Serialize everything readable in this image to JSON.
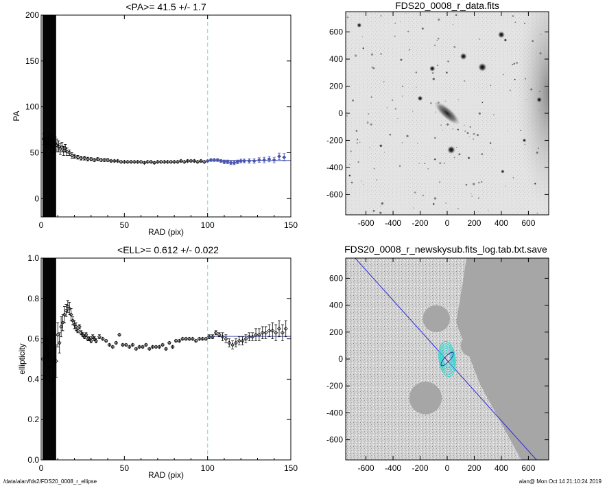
{
  "footer": {
    "path": "/data/alan/fds2/FDS20_0008_r_ellipse",
    "user_time": "alan@  Mon Oct 14 21:10:24 2019"
  },
  "colors": {
    "fit_line": "#4a55b0",
    "guide_line": "#7fe3ee",
    "outer_points": "#4a55b0",
    "ellipse_overlay": "#2fd6d0",
    "axis_line": "#2a2adb"
  },
  "chart_data": [
    {
      "type": "scatter",
      "title": "<PA>=  41.5 +/-   1.7",
      "xlabel": "RAD (pix)",
      "ylabel": "PA",
      "xlim": [
        0,
        150
      ],
      "ylim": [
        -20,
        200
      ],
      "xticks": [
        "0",
        "50",
        "100",
        "150"
      ],
      "yticks": [
        "0",
        "50",
        "100",
        "150",
        "200"
      ],
      "ytick_values": [
        0,
        50,
        100,
        150,
        200
      ],
      "xtick_values": [
        0,
        50,
        100,
        150
      ],
      "mean_value": 41.5,
      "mean_error": 1.7,
      "vertical_marker_x": 100,
      "fit_line_y": 41.5,
      "fit_line_xrange": [
        100,
        150
      ],
      "saturated_band_x": [
        0.8,
        9
      ],
      "x": [
        1.5,
        2.5,
        3.5,
        4.5,
        5.5,
        6.5,
        7.5,
        8.5,
        9.5,
        10.5,
        11.5,
        12.5,
        13.5,
        14.5,
        15.5,
        17,
        18.5,
        20,
        22,
        24,
        26,
        28,
        30,
        32,
        34,
        36,
        38,
        40,
        42,
        44,
        46,
        48,
        50,
        52,
        54,
        56,
        58,
        60,
        62,
        64,
        66,
        68,
        70,
        72,
        74,
        76,
        78,
        80,
        82,
        84,
        86,
        88,
        90,
        92,
        94,
        96,
        98,
        100,
        102,
        104,
        106,
        108,
        110,
        112,
        114,
        116,
        118,
        120,
        122,
        125,
        128,
        131,
        134,
        137,
        140,
        143,
        146
      ],
      "y": [
        65,
        62,
        60,
        66,
        58,
        63,
        55,
        60,
        58,
        57,
        54,
        56,
        52,
        55,
        51,
        50,
        47,
        46,
        45,
        44,
        44,
        43,
        43,
        42,
        43,
        42,
        42,
        42,
        41,
        41,
        41,
        40,
        40,
        40,
        40,
        40,
        40,
        40,
        39,
        40,
        40,
        39,
        40,
        40,
        40,
        40,
        40,
        40,
        40,
        41,
        40,
        41,
        41,
        41,
        40,
        41,
        40,
        41,
        42,
        42,
        42,
        41,
        40,
        40,
        39,
        39,
        40,
        41,
        41,
        41,
        41,
        42,
        42,
        43,
        42,
        46,
        45
      ],
      "yerr": [
        6,
        5,
        5,
        7,
        5,
        6,
        5,
        7,
        7,
        6,
        6,
        5,
        5,
        4,
        4,
        3,
        3,
        2,
        2,
        2,
        2,
        2,
        1.5,
        1.5,
        1.5,
        1.5,
        1.5,
        1.5,
        1,
        1,
        1,
        1,
        1,
        1,
        1,
        1,
        1,
        1,
        1,
        1,
        1,
        1,
        1,
        1,
        1,
        1,
        1,
        1,
        1,
        1,
        1,
        1,
        1,
        1,
        1,
        1,
        1,
        1,
        1.5,
        1.5,
        1.5,
        1.5,
        2,
        2,
        2,
        2,
        2,
        2,
        2,
        2.5,
        2.5,
        2.5,
        3,
        3,
        3,
        3.5,
        4
      ]
    },
    {
      "type": "scatter",
      "title": "<ELL>= 0.612 +/-  0.022",
      "xlabel": "RAD (pix)",
      "ylabel": "ellipticity",
      "xlim": [
        0,
        150
      ],
      "ylim": [
        0,
        1
      ],
      "xticks": [
        "0",
        "50",
        "100",
        "150"
      ],
      "yticks": [
        "0.0",
        "0.2",
        "0.4",
        "0.6",
        "0.8",
        "1.0"
      ],
      "ytick_values": [
        0,
        0.2,
        0.4,
        0.6,
        0.8,
        1.0
      ],
      "xtick_values": [
        0,
        50,
        100,
        150
      ],
      "mean_value": 0.612,
      "mean_error": 0.022,
      "vertical_marker_x": 100,
      "fit_line_y": 0.612,
      "fit_line_xrange": [
        100,
        150
      ],
      "saturated_band_x": [
        0.8,
        9
      ],
      "x": [
        1,
        2,
        3,
        4,
        5,
        6,
        7,
        8,
        9,
        10,
        11,
        12,
        13,
        14,
        15,
        16,
        17,
        18,
        19,
        20,
        21,
        22,
        23,
        24,
        25,
        26,
        27,
        28,
        29,
        30,
        31,
        32,
        33,
        35,
        37,
        39,
        41,
        43,
        45,
        47,
        49,
        51,
        53,
        55,
        57,
        59,
        61,
        63,
        65,
        67,
        69,
        71,
        73,
        75,
        77,
        79,
        81,
        83,
        85,
        87,
        89,
        91,
        93,
        95,
        97,
        99,
        101,
        103,
        105,
        107,
        109,
        111,
        113,
        115,
        117,
        119,
        121,
        123,
        125,
        127,
        129,
        131,
        133,
        135,
        137,
        139,
        141,
        143,
        145,
        147
      ],
      "y": [
        0.5,
        0.48,
        0.6,
        0.52,
        0.46,
        0.58,
        0.4,
        0.55,
        0.49,
        0.62,
        0.58,
        0.66,
        0.68,
        0.72,
        0.74,
        0.76,
        0.75,
        0.72,
        0.69,
        0.67,
        0.66,
        0.64,
        0.66,
        0.63,
        0.62,
        0.61,
        0.62,
        0.6,
        0.6,
        0.59,
        0.61,
        0.6,
        0.59,
        0.61,
        0.6,
        0.59,
        0.57,
        0.56,
        0.58,
        0.62,
        0.57,
        0.57,
        0.56,
        0.57,
        0.55,
        0.56,
        0.56,
        0.57,
        0.55,
        0.56,
        0.56,
        0.56,
        0.57,
        0.55,
        0.58,
        0.56,
        0.59,
        0.59,
        0.6,
        0.6,
        0.6,
        0.6,
        0.59,
        0.6,
        0.6,
        0.6,
        0.61,
        0.61,
        0.63,
        0.62,
        0.61,
        0.6,
        0.58,
        0.57,
        0.58,
        0.59,
        0.59,
        0.6,
        0.61,
        0.61,
        0.62,
        0.62,
        0.63,
        0.63,
        0.64,
        0.64,
        0.63,
        0.65,
        0.63,
        0.65
      ],
      "yerr": [
        0.08,
        0.07,
        0.09,
        0.08,
        0.07,
        0.09,
        0.08,
        0.09,
        0.08,
        0.06,
        0.05,
        0.05,
        0.04,
        0.04,
        0.03,
        0.03,
        0.03,
        0.03,
        0.02,
        0.02,
        0.02,
        0.01,
        0.01,
        0.01,
        0.01,
        0.01,
        0.01,
        0.01,
        0.01,
        0.01,
        0.01,
        0.01,
        0.01,
        0.01,
        0.005,
        0.005,
        0.005,
        0.005,
        0.005,
        0.005,
        0.005,
        0.005,
        0.005,
        0.005,
        0.005,
        0.005,
        0.005,
        0.005,
        0.005,
        0.005,
        0.005,
        0.005,
        0.005,
        0.005,
        0.005,
        0.005,
        0.005,
        0.005,
        0.005,
        0.005,
        0.005,
        0.005,
        0.005,
        0.005,
        0.005,
        0.005,
        0.01,
        0.01,
        0.01,
        0.01,
        0.02,
        0.02,
        0.02,
        0.02,
        0.02,
        0.02,
        0.02,
        0.02,
        0.02,
        0.02,
        0.03,
        0.03,
        0.03,
        0.03,
        0.03,
        0.04,
        0.04,
        0.04,
        0.04,
        0.04
      ]
    },
    {
      "type": "heatmap",
      "title": "FDS20_0008_r_data.fits",
      "xlim": [
        -750,
        750
      ],
      "ylim": [
        -750,
        750
      ],
      "xticks": [
        "-600",
        "-400",
        "-200",
        "0",
        "200",
        "400",
        "600"
      ],
      "yticks": [
        "-600",
        "-400",
        "-200",
        "0",
        "200",
        "400",
        "600"
      ],
      "xtick_values": [
        -600,
        -400,
        -200,
        0,
        200,
        400,
        600
      ],
      "ytick_values": [
        -600,
        -400,
        -200,
        0,
        200,
        400,
        600
      ],
      "colormap": "inverted grayscale",
      "stars": [
        {
          "x": -650,
          "y": 650,
          "r": 18
        },
        {
          "x": -620,
          "y": 480,
          "r": 8
        },
        {
          "x": -110,
          "y": 330,
          "r": 22
        },
        {
          "x": 120,
          "y": 420,
          "r": 26
        },
        {
          "x": 260,
          "y": 340,
          "r": 32
        },
        {
          "x": 400,
          "y": 580,
          "r": 26
        },
        {
          "x": 430,
          "y": 540,
          "r": 12
        },
        {
          "x": -200,
          "y": 110,
          "r": 20
        },
        {
          "x": 680,
          "y": 100,
          "r": 20
        },
        {
          "x": 30,
          "y": -270,
          "r": 30
        },
        {
          "x": -490,
          "y": -240,
          "r": 12
        },
        {
          "x": 570,
          "y": -200,
          "r": 14
        },
        {
          "x": 410,
          "y": -430,
          "r": 14
        },
        {
          "x": 160,
          "y": -330,
          "r": 10
        },
        {
          "x": -90,
          "y": -340,
          "r": 9
        },
        {
          "x": -720,
          "y": -460,
          "r": 9
        },
        {
          "x": 320,
          "y": -220,
          "r": 8
        },
        {
          "x": -100,
          "y": -670,
          "r": 9
        },
        {
          "x": 80,
          "y": -120,
          "r": 8
        },
        {
          "x": 260,
          "y": 80,
          "r": 6
        },
        {
          "x": -330,
          "y": 200,
          "r": 6
        },
        {
          "x": 500,
          "y": 250,
          "r": 7
        },
        {
          "x": -560,
          "y": 120,
          "r": 6
        },
        {
          "x": 650,
          "y": -520,
          "r": 8
        }
      ],
      "galaxy": {
        "x": 0,
        "y": 0,
        "major": 120,
        "minor": 40,
        "pa": 41.5
      }
    },
    {
      "type": "heatmap",
      "title": "FDS20_0008_r_newskysub.fits_log.tab.txt.save",
      "xlim": [
        -750,
        750
      ],
      "ylim": [
        -750,
        750
      ],
      "xticks": [
        "-600",
        "-400",
        "-200",
        "0",
        "200",
        "400",
        "600"
      ],
      "yticks": [
        "-600",
        "-400",
        "-200",
        "0",
        "200",
        "400",
        "600"
      ],
      "xtick_values": [
        -600,
        -400,
        -200,
        0,
        200,
        400,
        600
      ],
      "ytick_values": [
        -600,
        -400,
        -200,
        0,
        200,
        400,
        600
      ],
      "colormap": "grayscale mask",
      "masked_regions": [
        {
          "x": -80,
          "y": 300,
          "r": 100
        },
        {
          "x": -160,
          "y": -290,
          "r": 120
        },
        {
          "x": 180,
          "y": 100,
          "r": 80
        }
      ],
      "major_axis_line": {
        "x1": -680,
        "y1": 750,
        "x2": 660,
        "y2": -750
      },
      "ellipse_center": {
        "x": 0,
        "y": 0
      },
      "ellipse_semi_major": 130,
      "ellipse_ellipticity": 0.612,
      "ellipse_pa": 41.5
    }
  ]
}
